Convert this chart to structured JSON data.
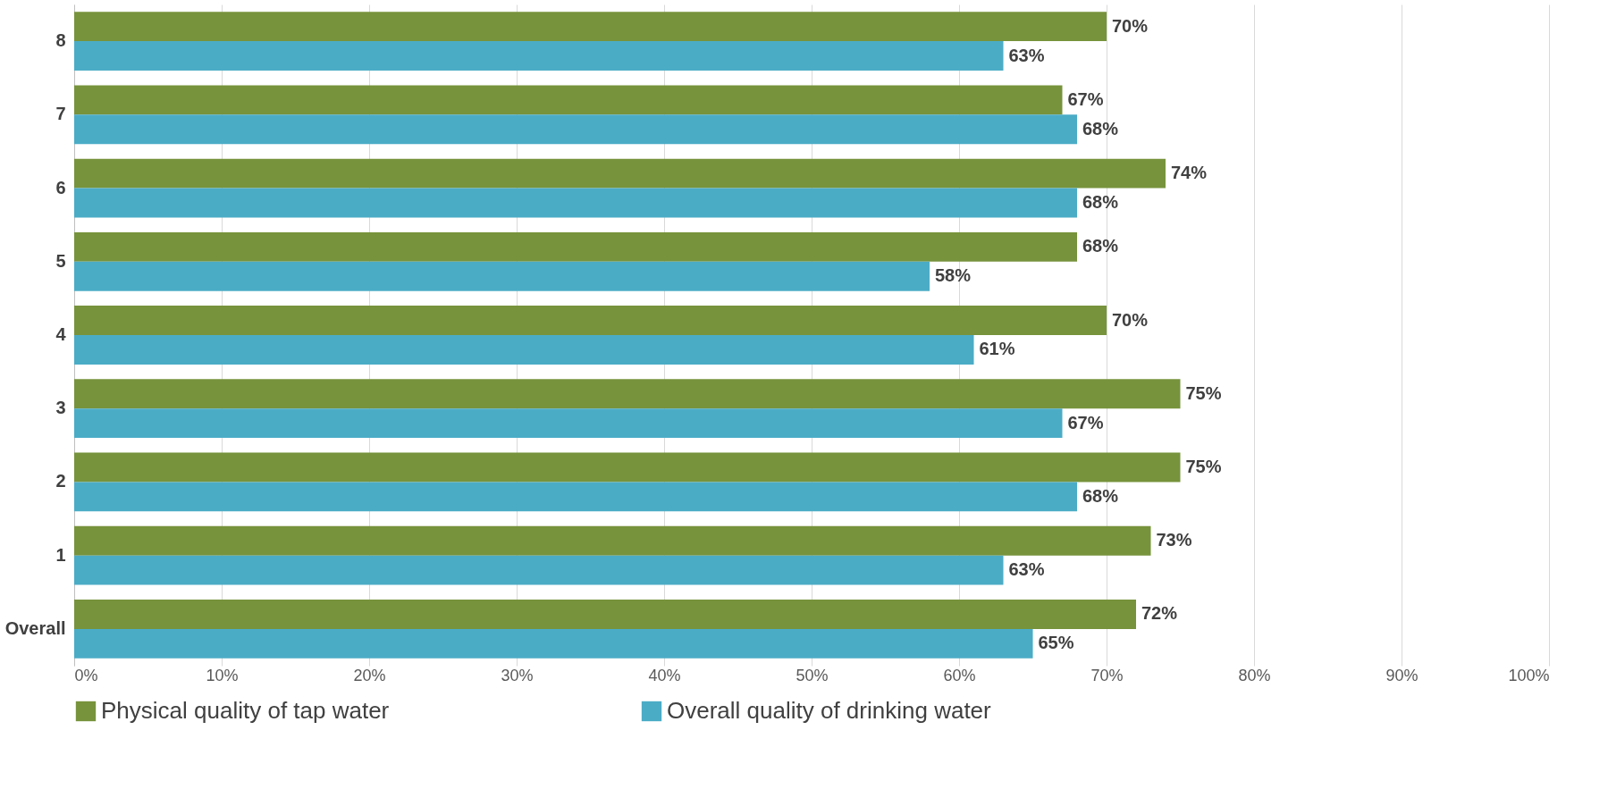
{
  "chart_data": {
    "type": "bar",
    "orientation": "horizontal",
    "categories": [
      "8",
      "7",
      "6",
      "5",
      "4",
      "3",
      "2",
      "1",
      "Overall"
    ],
    "series": [
      {
        "name": "Physical quality of tap water",
        "color": "#77933c",
        "values": [
          70,
          67,
          74,
          68,
          70,
          75,
          75,
          73,
          72
        ],
        "value_labels": [
          "70%",
          "67%",
          "74%",
          "68%",
          "70%",
          "75%",
          "75%",
          "73%",
          "72%"
        ]
      },
      {
        "name": "Overall quality of drinking water",
        "color": "#4bacc6",
        "values": [
          63,
          68,
          68,
          58,
          61,
          67,
          68,
          63,
          65
        ],
        "value_labels": [
          "63%",
          "68%",
          "68%",
          "58%",
          "61%",
          "67%",
          "68%",
          "63%",
          "65%"
        ]
      }
    ],
    "xlim": [
      0,
      100
    ],
    "xticks": [
      {
        "value": 0,
        "label": "0%"
      },
      {
        "value": 10,
        "label": "10%"
      },
      {
        "value": 20,
        "label": "20%"
      },
      {
        "value": 30,
        "label": "30%"
      },
      {
        "value": 40,
        "label": "40%"
      },
      {
        "value": 50,
        "label": "50%"
      },
      {
        "value": 60,
        "label": "60%"
      },
      {
        "value": 70,
        "label": "70%"
      },
      {
        "value": 80,
        "label": "80%"
      },
      {
        "value": 90,
        "label": "90%"
      },
      {
        "value": 100,
        "label": "100%"
      }
    ],
    "grid": "x",
    "legend": "bottom"
  }
}
